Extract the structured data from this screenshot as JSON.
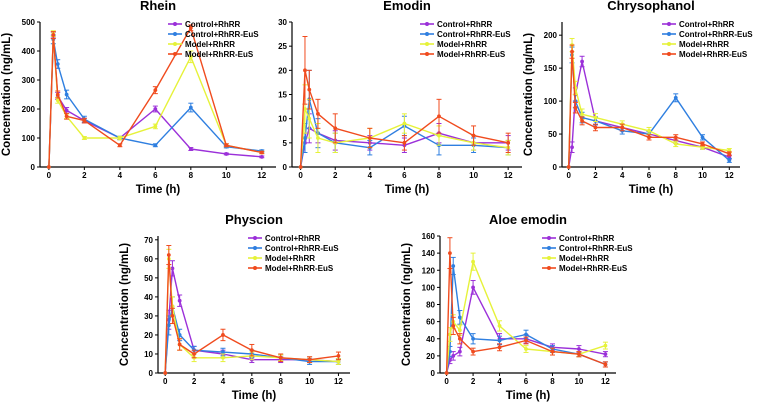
{
  "colors": {
    "control_rhrr": "#9b30d9",
    "control_rhrr_eus": "#2f7fe0",
    "model_rhrr": "#e6f23a",
    "model_rhrr_eus": "#f04b1e"
  },
  "chart_data": [
    {
      "type": "line",
      "title": "Rhein",
      "xlabel": "Time (h)",
      "ylabel": "Concentration (ng/mL)",
      "xlim": [
        -0.5,
        12.8
      ],
      "ylim": [
        0,
        500
      ],
      "xticks": [
        0,
        2,
        4,
        6,
        8,
        10,
        12
      ],
      "yticks": [
        0,
        100,
        200,
        300,
        400,
        500
      ],
      "legend": "top-right",
      "x": [
        0,
        0.25,
        0.5,
        1,
        2,
        4,
        6,
        8,
        10,
        12
      ],
      "series": [
        {
          "name": "Control+RhRR",
          "color": "#9b30d9",
          "values": [
            0,
            455,
            245,
            195,
            160,
            100,
            200,
            62,
            45,
            35
          ],
          "errors": [
            0,
            10,
            12,
            10,
            8,
            5,
            10,
            5,
            3,
            3
          ]
        },
        {
          "name": "Control+RhRR-EuS",
          "color": "#2f7fe0",
          "values": [
            0,
            440,
            355,
            250,
            165,
            100,
            75,
            205,
            70,
            55
          ],
          "errors": [
            0,
            15,
            15,
            15,
            10,
            6,
            5,
            15,
            4,
            4
          ]
        },
        {
          "name": "Model+RhRR",
          "color": "#e6f23a",
          "values": [
            0,
            460,
            230,
            175,
            100,
            100,
            140,
            380,
            75,
            50
          ],
          "errors": [
            0,
            10,
            10,
            8,
            5,
            6,
            8,
            20,
            5,
            4
          ]
        },
        {
          "name": "Model+RhRR-EuS",
          "color": "#f04b1e",
          "values": [
            0,
            455,
            250,
            175,
            160,
            75,
            265,
            480,
            75,
            50
          ],
          "errors": [
            0,
            12,
            12,
            10,
            8,
            5,
            12,
            10,
            5,
            4
          ]
        }
      ]
    },
    {
      "type": "line",
      "title": "Emodin",
      "xlabel": "Time (h)",
      "ylabel": "",
      "xlim": [
        -0.5,
        12.8
      ],
      "ylim": [
        0,
        30
      ],
      "xticks": [
        0,
        2,
        4,
        6,
        8,
        10,
        12
      ],
      "yticks": [
        0,
        5,
        10,
        15,
        20,
        25,
        30
      ],
      "legend": "top-right",
      "x": [
        0,
        0.25,
        0.5,
        1,
        2,
        4,
        6,
        8,
        10,
        12
      ],
      "series": [
        {
          "name": "Control+RhRR",
          "color": "#9b30d9",
          "values": [
            0,
            5,
            8,
            7,
            5.5,
            5,
            4.5,
            7,
            5,
            5
          ],
          "errors": [
            0,
            2,
            3,
            2,
            2,
            1.5,
            1.5,
            2,
            1.5,
            1.5
          ]
        },
        {
          "name": "Control+RhRR-EuS",
          "color": "#2f7fe0",
          "values": [
            0,
            6,
            14,
            7,
            5,
            4,
            8.5,
            4.5,
            4.5,
            4
          ],
          "errors": [
            0,
            3,
            6,
            3,
            2,
            1.5,
            2,
            2,
            1.5,
            1.5
          ]
        },
        {
          "name": "Model+RhRR",
          "color": "#e6f23a",
          "values": [
            0,
            12,
            10,
            6,
            5,
            6,
            9,
            6.5,
            5,
            4
          ],
          "errors": [
            0,
            5,
            4,
            3,
            2,
            2,
            2,
            2,
            1.5,
            1.5
          ]
        },
        {
          "name": "Model+RhRR-EuS",
          "color": "#f04b1e",
          "values": [
            0,
            20,
            16,
            11,
            8,
            6,
            5,
            10.5,
            6.5,
            5
          ],
          "errors": [
            0,
            7,
            4,
            3,
            3,
            2,
            1.5,
            3.5,
            2,
            2
          ]
        }
      ]
    },
    {
      "type": "line",
      "title": "Chrysophanol",
      "xlabel": "Time (h)",
      "ylabel": "Concentration (ng/mL)",
      "xlim": [
        -0.5,
        12.8
      ],
      "ylim": [
        0,
        220
      ],
      "xticks": [
        0,
        2,
        4,
        6,
        8,
        10,
        12
      ],
      "yticks": [
        0,
        50,
        100,
        150,
        200
      ],
      "legend": "top-right",
      "x": [
        0,
        0.25,
        0.5,
        1,
        2,
        4,
        6,
        8,
        10,
        12
      ],
      "series": [
        {
          "name": "Control+RhRR",
          "color": "#9b30d9",
          "values": [
            0,
            30,
            110,
            160,
            70,
            60,
            50,
            40,
            30,
            15
          ],
          "errors": [
            0,
            8,
            10,
            8,
            6,
            5,
            4,
            4,
            3,
            3
          ]
        },
        {
          "name": "Control+RhRR-EuS",
          "color": "#2f7fe0",
          "values": [
            0,
            170,
            100,
            75,
            70,
            55,
            50,
            105,
            45,
            10
          ],
          "errors": [
            0,
            12,
            10,
            8,
            6,
            5,
            4,
            6,
            4,
            3
          ]
        },
        {
          "name": "Model+RhRR",
          "color": "#e6f23a",
          "values": [
            0,
            185,
            120,
            80,
            75,
            65,
            55,
            35,
            30,
            25
          ],
          "errors": [
            0,
            10,
            10,
            8,
            6,
            5,
            5,
            4,
            3,
            3
          ]
        },
        {
          "name": "Model+RhRR-EuS",
          "color": "#f04b1e",
          "values": [
            0,
            175,
            90,
            70,
            60,
            60,
            45,
            45,
            35,
            20
          ],
          "errors": [
            0,
            10,
            8,
            6,
            5,
            5,
            4,
            4,
            3,
            3
          ]
        }
      ]
    },
    {
      "type": "line",
      "title": "Physcion",
      "xlabel": "Time (h)",
      "ylabel": "Concentration (ng/mL)",
      "xlim": [
        -0.5,
        12.8
      ],
      "ylim": [
        0,
        72
      ],
      "xticks": [
        0,
        2,
        4,
        6,
        8,
        10,
        12
      ],
      "yticks": [
        0,
        10,
        20,
        30,
        40,
        50,
        60,
        70
      ],
      "legend": "top-right",
      "x": [
        0,
        0.25,
        0.5,
        1,
        2,
        4,
        6,
        8,
        10,
        12
      ],
      "series": [
        {
          "name": "Control+RhRR",
          "color": "#9b30d9",
          "values": [
            0,
            28,
            55,
            38,
            12,
            10,
            7,
            7,
            7,
            6
          ],
          "errors": [
            0,
            5,
            4,
            3,
            2,
            2,
            1.5,
            1.5,
            1.5,
            1.5
          ]
        },
        {
          "name": "Control+RhRR-EuS",
          "color": "#2f7fe0",
          "values": [
            0,
            25,
            35,
            20,
            12,
            11,
            10,
            8,
            6,
            6
          ],
          "errors": [
            0,
            5,
            5,
            3,
            2,
            2,
            2,
            1.5,
            1.5,
            1.5
          ]
        },
        {
          "name": "Model+RhRR",
          "color": "#e6f23a",
          "values": [
            0,
            60,
            35,
            15,
            8,
            8,
            9,
            8,
            7,
            6
          ],
          "errors": [
            0,
            5,
            5,
            3,
            2,
            2,
            2,
            1.5,
            1.5,
            1.5
          ]
        },
        {
          "name": "Model+RhRR-EuS",
          "color": "#f04b1e",
          "values": [
            0,
            62,
            30,
            15,
            10,
            20,
            12,
            8,
            7,
            9
          ],
          "errors": [
            0,
            5,
            4,
            3,
            2,
            3,
            3,
            2,
            1.5,
            2
          ]
        }
      ]
    },
    {
      "type": "line",
      "title": "Aloe emodin",
      "xlabel": "Time (h)",
      "ylabel": "Concentration (ng/mL)",
      "xlim": [
        -0.5,
        12.8
      ],
      "ylim": [
        0,
        160
      ],
      "xticks": [
        0,
        2,
        4,
        6,
        8,
        10,
        12
      ],
      "yticks": [
        0,
        20,
        40,
        60,
        80,
        100,
        120,
        140,
        160
      ],
      "legend": "top-right",
      "x": [
        0,
        0.25,
        0.5,
        1,
        2,
        4,
        6,
        8,
        10,
        12
      ],
      "series": [
        {
          "name": "Control+RhRR",
          "color": "#9b30d9",
          "values": [
            0,
            15,
            20,
            25,
            100,
            40,
            40,
            30,
            28,
            22
          ],
          "errors": [
            0,
            4,
            5,
            5,
            8,
            6,
            5,
            4,
            4,
            3
          ]
        },
        {
          "name": "Control+RhRR-EuS",
          "color": "#2f7fe0",
          "values": [
            0,
            25,
            125,
            65,
            40,
            38,
            45,
            28,
            22,
            10
          ],
          "errors": [
            0,
            6,
            10,
            8,
            6,
            5,
            5,
            4,
            3,
            3
          ]
        },
        {
          "name": "Model+RhRR",
          "color": "#e6f23a",
          "values": [
            0,
            45,
            60,
            50,
            130,
            55,
            28,
            25,
            22,
            32
          ],
          "errors": [
            0,
            8,
            8,
            6,
            10,
            6,
            4,
            4,
            3,
            4
          ]
        },
        {
          "name": "Model+RhRR-EuS",
          "color": "#f04b1e",
          "values": [
            0,
            140,
            55,
            40,
            25,
            30,
            38,
            25,
            22,
            10
          ],
          "errors": [
            0,
            18,
            10,
            6,
            4,
            4,
            4,
            4,
            3,
            3
          ]
        }
      ]
    }
  ]
}
